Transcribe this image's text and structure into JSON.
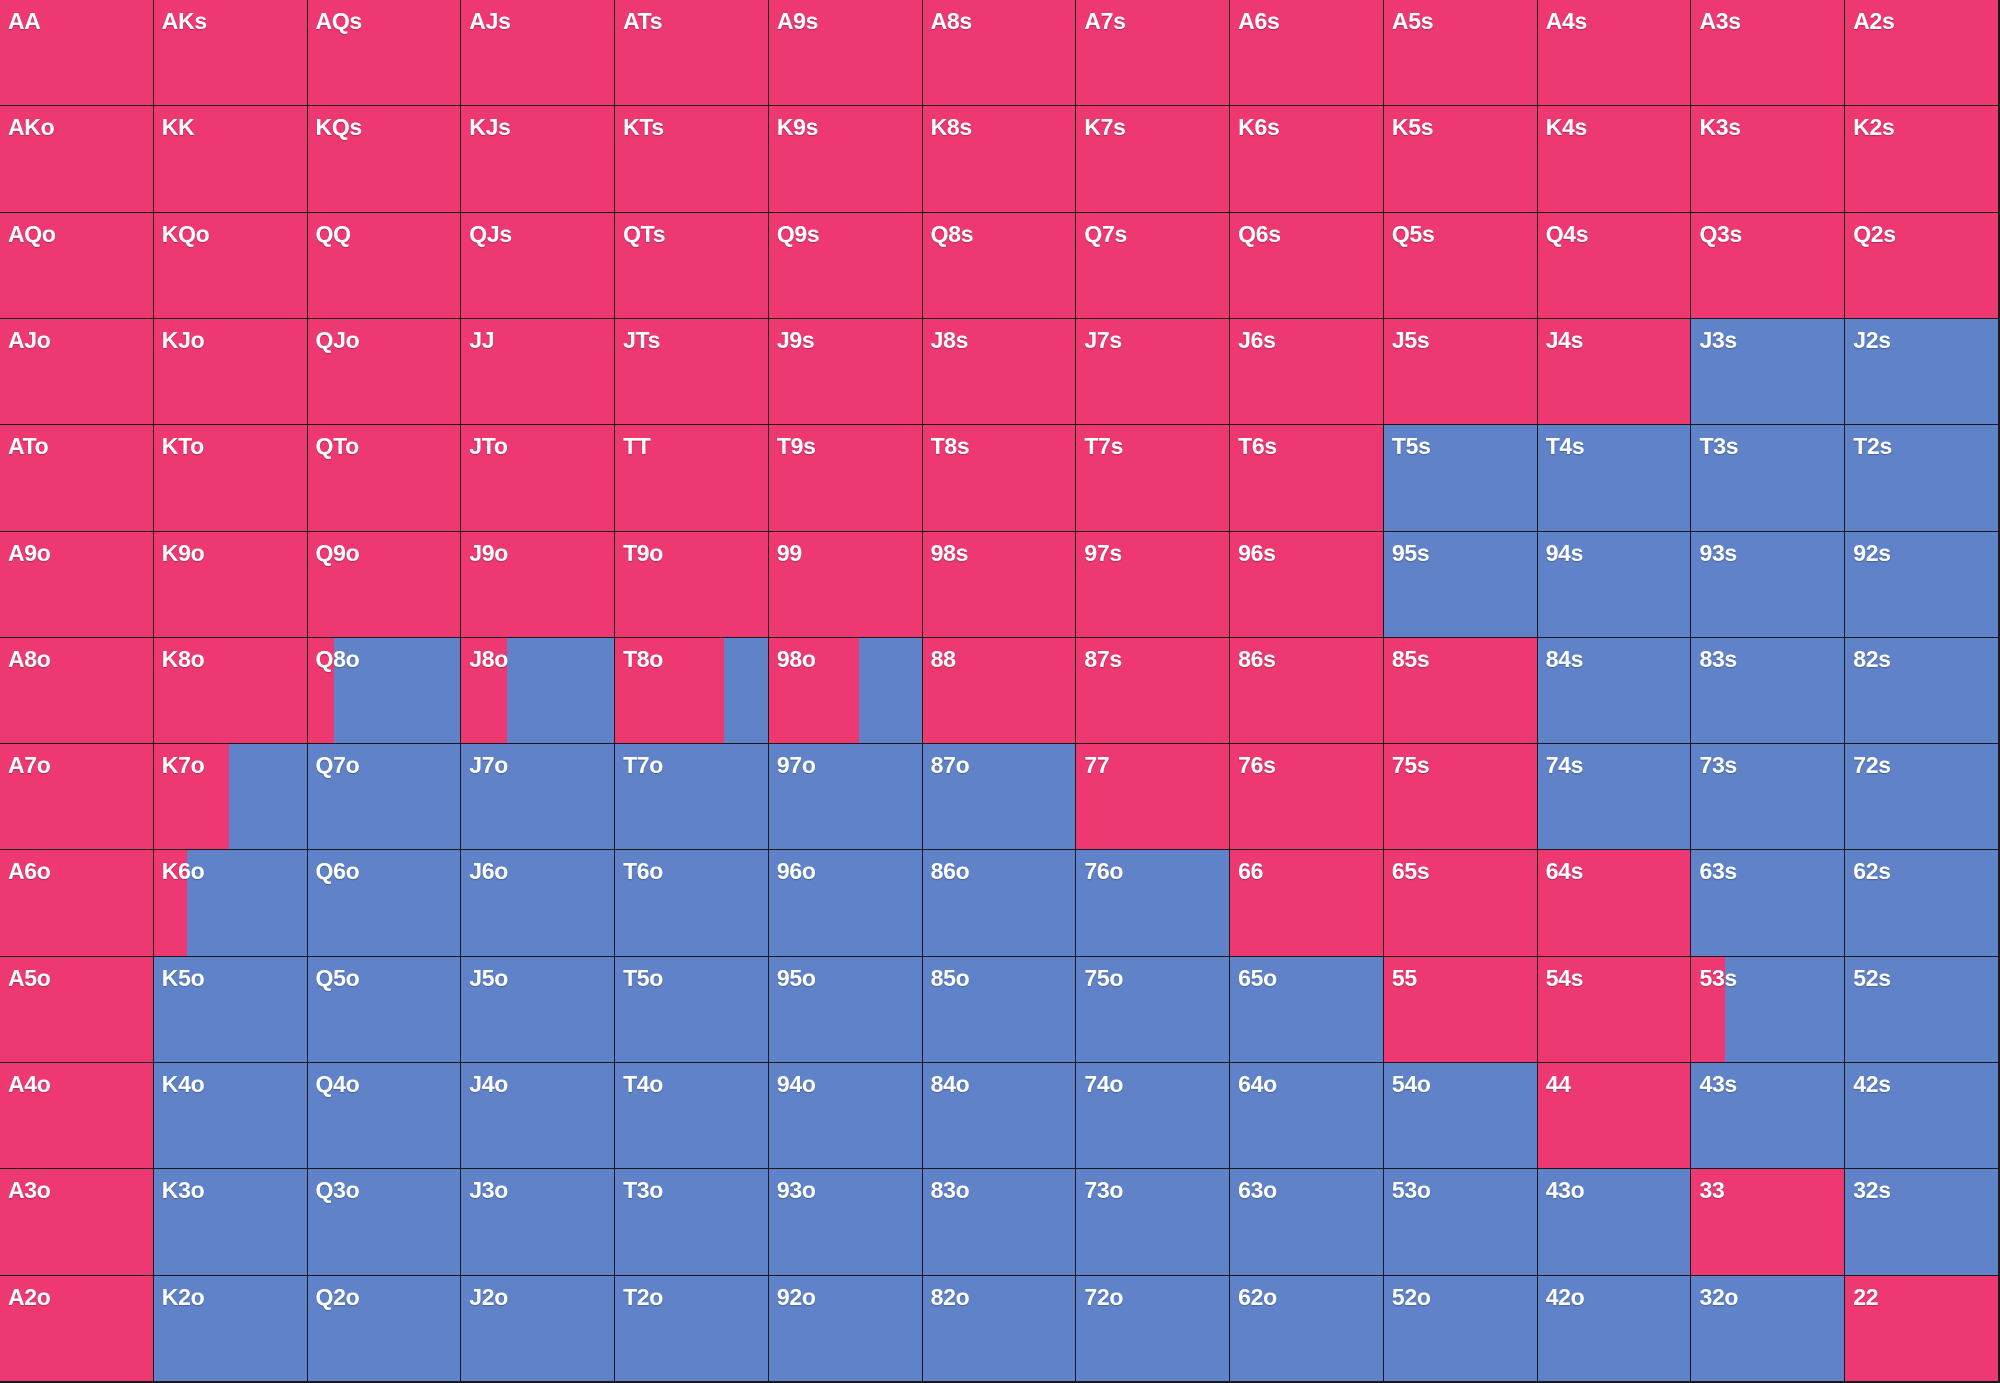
{
  "colors": {
    "raise": "#ee3872",
    "fold": "#5f82c8"
  },
  "rows": [
    [
      [
        "AA",
        1
      ],
      [
        "AKs",
        1
      ],
      [
        "AQs",
        1
      ],
      [
        "AJs",
        1
      ],
      [
        "ATs",
        1
      ],
      [
        "A9s",
        1
      ],
      [
        "A8s",
        1
      ],
      [
        "A7s",
        1
      ],
      [
        "A6s",
        1
      ],
      [
        "A5s",
        1
      ],
      [
        "A4s",
        1
      ],
      [
        "A3s",
        1
      ],
      [
        "A2s",
        1
      ]
    ],
    [
      [
        "AKo",
        1
      ],
      [
        "KK",
        1
      ],
      [
        "KQs",
        1
      ],
      [
        "KJs",
        1
      ],
      [
        "KTs",
        1
      ],
      [
        "K9s",
        1
      ],
      [
        "K8s",
        1
      ],
      [
        "K7s",
        1
      ],
      [
        "K6s",
        1
      ],
      [
        "K5s",
        1
      ],
      [
        "K4s",
        1
      ],
      [
        "K3s",
        1
      ],
      [
        "K2s",
        1
      ]
    ],
    [
      [
        "AQo",
        1
      ],
      [
        "KQo",
        1
      ],
      [
        "QQ",
        1
      ],
      [
        "QJs",
        1
      ],
      [
        "QTs",
        1
      ],
      [
        "Q9s",
        1
      ],
      [
        "Q8s",
        1
      ],
      [
        "Q7s",
        1
      ],
      [
        "Q6s",
        1
      ],
      [
        "Q5s",
        1
      ],
      [
        "Q4s",
        1
      ],
      [
        "Q3s",
        1
      ],
      [
        "Q2s",
        1
      ]
    ],
    [
      [
        "AJo",
        1
      ],
      [
        "KJo",
        1
      ],
      [
        "QJo",
        1
      ],
      [
        "JJ",
        1
      ],
      [
        "JTs",
        1
      ],
      [
        "J9s",
        1
      ],
      [
        "J8s",
        1
      ],
      [
        "J7s",
        1
      ],
      [
        "J6s",
        1
      ],
      [
        "J5s",
        1
      ],
      [
        "J4s",
        1
      ],
      [
        "J3s",
        0
      ],
      [
        "J2s",
        0
      ]
    ],
    [
      [
        "ATo",
        1
      ],
      [
        "KTo",
        1
      ],
      [
        "QTo",
        1
      ],
      [
        "JTo",
        1
      ],
      [
        "TT",
        1
      ],
      [
        "T9s",
        1
      ],
      [
        "T8s",
        1
      ],
      [
        "T7s",
        1
      ],
      [
        "T6s",
        1
      ],
      [
        "T5s",
        0
      ],
      [
        "T4s",
        0
      ],
      [
        "T3s",
        0
      ],
      [
        "T2s",
        0
      ]
    ],
    [
      [
        "A9o",
        1
      ],
      [
        "K9o",
        1
      ],
      [
        "Q9o",
        1
      ],
      [
        "J9o",
        1
      ],
      [
        "T9o",
        1
      ],
      [
        "99",
        1
      ],
      [
        "98s",
        1
      ],
      [
        "97s",
        1
      ],
      [
        "96s",
        1
      ],
      [
        "95s",
        0
      ],
      [
        "94s",
        0
      ],
      [
        "93s",
        0
      ],
      [
        "92s",
        0
      ]
    ],
    [
      [
        "A8o",
        1
      ],
      [
        "K8o",
        1
      ],
      [
        "Q8o",
        0.17
      ],
      [
        "J8o",
        0.3
      ],
      [
        "T8o",
        0.71
      ],
      [
        "98o",
        0.59
      ],
      [
        "88",
        1
      ],
      [
        "87s",
        1
      ],
      [
        "86s",
        1
      ],
      [
        "85s",
        1
      ],
      [
        "84s",
        0
      ],
      [
        "83s",
        0
      ],
      [
        "82s",
        0
      ]
    ],
    [
      [
        "A7o",
        1
      ],
      [
        "K7o",
        0.49
      ],
      [
        "Q7o",
        0
      ],
      [
        "J7o",
        0
      ],
      [
        "T7o",
        0
      ],
      [
        "97o",
        0
      ],
      [
        "87o",
        0
      ],
      [
        "77",
        1
      ],
      [
        "76s",
        1
      ],
      [
        "75s",
        1
      ],
      [
        "74s",
        0
      ],
      [
        "73s",
        0
      ],
      [
        "72s",
        0
      ]
    ],
    [
      [
        "A6o",
        1
      ],
      [
        "K6o",
        0.22
      ],
      [
        "Q6o",
        0
      ],
      [
        "J6o",
        0
      ],
      [
        "T6o",
        0
      ],
      [
        "96o",
        0
      ],
      [
        "86o",
        0
      ],
      [
        "76o",
        0
      ],
      [
        "66",
        1
      ],
      [
        "65s",
        1
      ],
      [
        "64s",
        1
      ],
      [
        "63s",
        0
      ],
      [
        "62s",
        0
      ]
    ],
    [
      [
        "A5o",
        1
      ],
      [
        "K5o",
        0
      ],
      [
        "Q5o",
        0
      ],
      [
        "J5o",
        0
      ],
      [
        "T5o",
        0
      ],
      [
        "95o",
        0
      ],
      [
        "85o",
        0
      ],
      [
        "75o",
        0
      ],
      [
        "65o",
        0
      ],
      [
        "55",
        1
      ],
      [
        "54s",
        1
      ],
      [
        "53s",
        0.22
      ],
      [
        "52s",
        0
      ]
    ],
    [
      [
        "A4o",
        1
      ],
      [
        "K4o",
        0
      ],
      [
        "Q4o",
        0
      ],
      [
        "J4o",
        0
      ],
      [
        "T4o",
        0
      ],
      [
        "94o",
        0
      ],
      [
        "84o",
        0
      ],
      [
        "74o",
        0
      ],
      [
        "64o",
        0
      ],
      [
        "54o",
        0
      ],
      [
        "44",
        1
      ],
      [
        "43s",
        0
      ],
      [
        "42s",
        0
      ]
    ],
    [
      [
        "A3o",
        1
      ],
      [
        "K3o",
        0
      ],
      [
        "Q3o",
        0
      ],
      [
        "J3o",
        0
      ],
      [
        "T3o",
        0
      ],
      [
        "93o",
        0
      ],
      [
        "83o",
        0
      ],
      [
        "73o",
        0
      ],
      [
        "63o",
        0
      ],
      [
        "53o",
        0
      ],
      [
        "43o",
        0
      ],
      [
        "33",
        1
      ],
      [
        "32s",
        0
      ]
    ],
    [
      [
        "A2o",
        1
      ],
      [
        "K2o",
        0
      ],
      [
        "Q2o",
        0
      ],
      [
        "J2o",
        0
      ],
      [
        "T2o",
        0
      ],
      [
        "92o",
        0
      ],
      [
        "82o",
        0
      ],
      [
        "72o",
        0
      ],
      [
        "62o",
        0
      ],
      [
        "52o",
        0
      ],
      [
        "42o",
        0
      ],
      [
        "32o",
        0
      ],
      [
        "22",
        1
      ]
    ]
  ]
}
